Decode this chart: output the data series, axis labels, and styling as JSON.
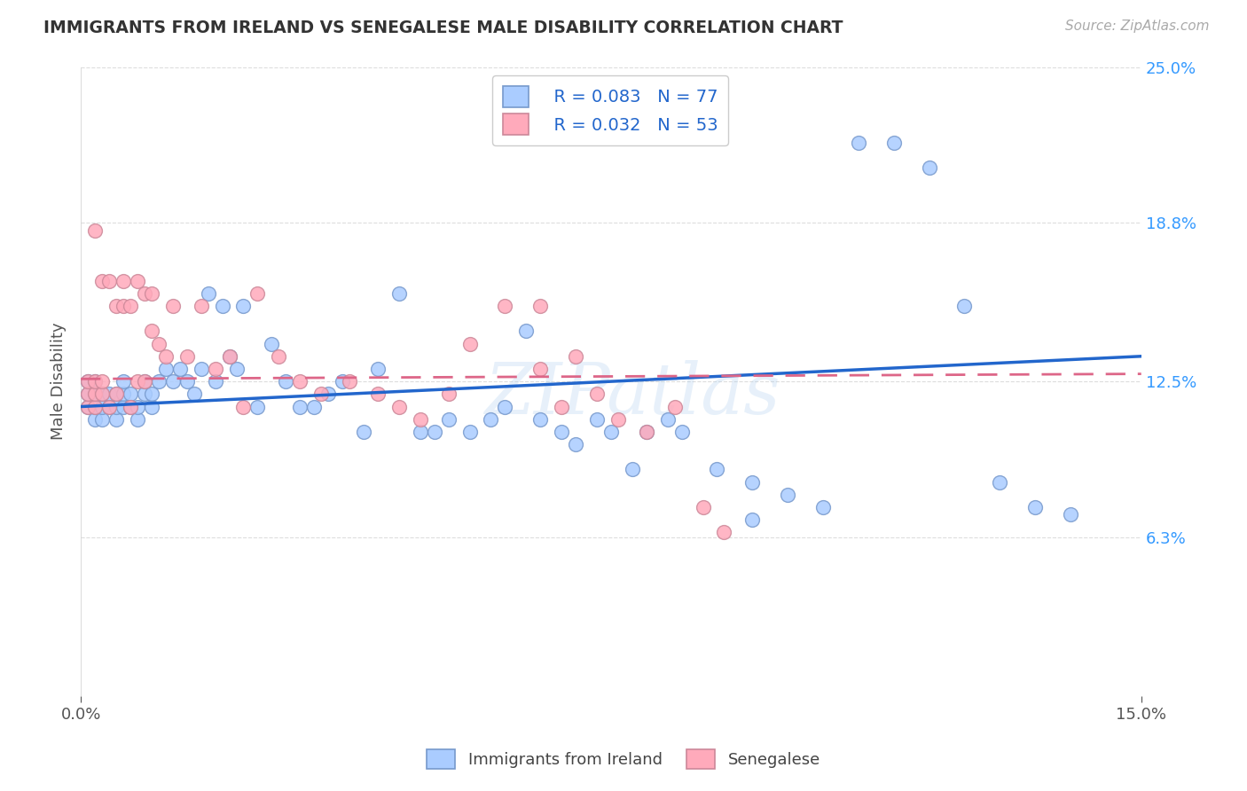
{
  "title": "IMMIGRANTS FROM IRELAND VS SENEGALESE MALE DISABILITY CORRELATION CHART",
  "source": "Source: ZipAtlas.com",
  "ylabel": "Male Disability",
  "xlim": [
    0.0,
    0.15
  ],
  "ylim": [
    0.0,
    0.25
  ],
  "background_color": "#ffffff",
  "grid_color": "#dddddd",
  "ireland_color": "#aaccff",
  "senegal_color": "#ffaabb",
  "ireland_edge_color": "#7799cc",
  "senegal_edge_color": "#cc8899",
  "trend_ireland_color": "#2266cc",
  "trend_senegal_color": "#dd6688",
  "watermark": "ZIPatlas",
  "legend_r_ireland": "R = 0.083",
  "legend_n_ireland": "N = 77",
  "legend_r_senegal": "R = 0.032",
  "legend_n_senegal": "N = 53",
  "ireland_R": 0.083,
  "ireland_N": 77,
  "senegal_R": 0.032,
  "senegal_N": 53,
  "ireland_trend_x0": 0.0,
  "ireland_trend_y0": 0.115,
  "ireland_trend_x1": 0.15,
  "ireland_trend_y1": 0.135,
  "senegal_trend_x0": 0.0,
  "senegal_trend_y0": 0.126,
  "senegal_trend_x1": 0.15,
  "senegal_trend_y1": 0.128,
  "ireland_x": [
    0.001,
    0.001,
    0.001,
    0.002,
    0.002,
    0.002,
    0.002,
    0.003,
    0.003,
    0.003,
    0.004,
    0.004,
    0.005,
    0.005,
    0.005,
    0.006,
    0.006,
    0.006,
    0.007,
    0.007,
    0.008,
    0.008,
    0.009,
    0.009,
    0.01,
    0.01,
    0.011,
    0.012,
    0.013,
    0.014,
    0.015,
    0.016,
    0.017,
    0.018,
    0.019,
    0.02,
    0.021,
    0.022,
    0.023,
    0.025,
    0.027,
    0.029,
    0.031,
    0.033,
    0.035,
    0.037,
    0.04,
    0.042,
    0.045,
    0.048,
    0.05,
    0.052,
    0.055,
    0.058,
    0.06,
    0.063,
    0.065,
    0.068,
    0.07,
    0.073,
    0.075,
    0.078,
    0.08,
    0.083,
    0.085,
    0.09,
    0.095,
    0.1,
    0.105,
    0.11,
    0.115,
    0.12,
    0.125,
    0.13,
    0.135,
    0.14,
    0.095
  ],
  "ireland_y": [
    0.115,
    0.12,
    0.125,
    0.11,
    0.115,
    0.12,
    0.125,
    0.11,
    0.115,
    0.12,
    0.115,
    0.12,
    0.11,
    0.115,
    0.12,
    0.115,
    0.12,
    0.125,
    0.115,
    0.12,
    0.11,
    0.115,
    0.12,
    0.125,
    0.115,
    0.12,
    0.125,
    0.13,
    0.125,
    0.13,
    0.125,
    0.12,
    0.13,
    0.16,
    0.125,
    0.155,
    0.135,
    0.13,
    0.155,
    0.115,
    0.14,
    0.125,
    0.115,
    0.115,
    0.12,
    0.125,
    0.105,
    0.13,
    0.16,
    0.105,
    0.105,
    0.11,
    0.105,
    0.11,
    0.115,
    0.145,
    0.11,
    0.105,
    0.1,
    0.11,
    0.105,
    0.09,
    0.105,
    0.11,
    0.105,
    0.09,
    0.085,
    0.08,
    0.075,
    0.22,
    0.22,
    0.21,
    0.155,
    0.085,
    0.075,
    0.072,
    0.07
  ],
  "senegal_x": [
    0.001,
    0.001,
    0.001,
    0.002,
    0.002,
    0.002,
    0.003,
    0.003,
    0.003,
    0.004,
    0.004,
    0.005,
    0.005,
    0.006,
    0.006,
    0.007,
    0.007,
    0.008,
    0.008,
    0.009,
    0.009,
    0.01,
    0.01,
    0.011,
    0.012,
    0.013,
    0.015,
    0.017,
    0.019,
    0.021,
    0.023,
    0.025,
    0.028,
    0.031,
    0.034,
    0.038,
    0.042,
    0.045,
    0.048,
    0.052,
    0.055,
    0.06,
    0.065,
    0.068,
    0.07,
    0.073,
    0.076,
    0.08,
    0.084,
    0.088,
    0.091,
    0.002,
    0.065
  ],
  "senegal_y": [
    0.115,
    0.12,
    0.125,
    0.115,
    0.12,
    0.125,
    0.12,
    0.125,
    0.165,
    0.115,
    0.165,
    0.12,
    0.155,
    0.165,
    0.155,
    0.115,
    0.155,
    0.125,
    0.165,
    0.125,
    0.16,
    0.145,
    0.16,
    0.14,
    0.135,
    0.155,
    0.135,
    0.155,
    0.13,
    0.135,
    0.115,
    0.16,
    0.135,
    0.125,
    0.12,
    0.125,
    0.12,
    0.115,
    0.11,
    0.12,
    0.14,
    0.155,
    0.13,
    0.115,
    0.135,
    0.12,
    0.11,
    0.105,
    0.115,
    0.075,
    0.065,
    0.185,
    0.155
  ]
}
